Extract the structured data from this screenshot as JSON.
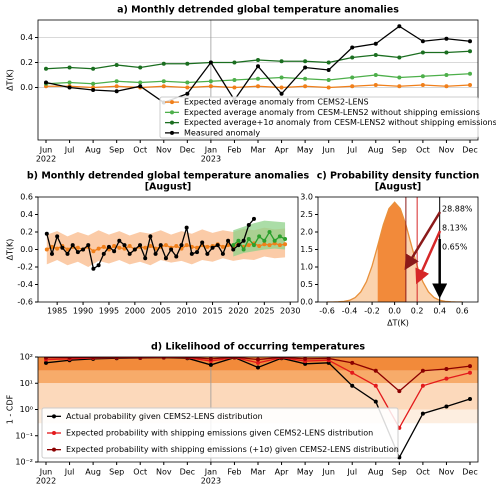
{
  "chart_data": [
    {
      "type": "line",
      "title": "a) Monthly detrended global temperature anomalies",
      "ylabel": "ΔT(K)",
      "categories": [
        "Jun",
        "Jul",
        "Aug",
        "Sep",
        "Oct",
        "Nov",
        "Dec",
        "Jan",
        "Feb",
        "Mar",
        "Apr",
        "May",
        "Jun",
        "Jul",
        "Aug",
        "Sep",
        "Oct",
        "Nov",
        "Dec"
      ],
      "x_years": [
        "2022",
        "2023"
      ],
      "ylim": [
        -0.42,
        0.54
      ],
      "yticks": [
        {
          "value": 0,
          "label": "0.0"
        },
        {
          "value": 0.2,
          "label": "0.2"
        },
        {
          "value": 0.4,
          "label": "0.4"
        }
      ],
      "grid": true,
      "series": [
        {
          "name": "Expected average anomaly from CEMS2-LENS",
          "color": "#f07f1a",
          "values": [
            0.01,
            0.01,
            0.0,
            0.01,
            0.0,
            0.01,
            0.0,
            0.01,
            0.0,
            0.01,
            0.0,
            0.01,
            0.0,
            0.01,
            0.02,
            0.01,
            0.02,
            0.01,
            0.02
          ]
        },
        {
          "name": "Expected average anomaly from CESM-LENS2 without shipping emissions",
          "color": "#4daf4a",
          "values": [
            0.03,
            0.04,
            0.03,
            0.05,
            0.04,
            0.05,
            0.04,
            0.05,
            0.06,
            0.07,
            0.08,
            0.07,
            0.06,
            0.08,
            0.1,
            0.08,
            0.09,
            0.1,
            0.11
          ]
        },
        {
          "name": "Expected average+1σ anomaly from CESM-LENS2 without shipping emissions",
          "color": "#1b6e20",
          "values": [
            0.15,
            0.16,
            0.15,
            0.18,
            0.16,
            0.19,
            0.19,
            0.2,
            0.2,
            0.22,
            0.21,
            0.21,
            0.2,
            0.24,
            0.26,
            0.24,
            0.28,
            0.28,
            0.29
          ]
        },
        {
          "name": "Measured anomaly",
          "color": "#000000",
          "values": [
            0.04,
            0.0,
            -0.02,
            -0.03,
            0.01,
            -0.12,
            -0.05,
            0.2,
            -0.1,
            0.17,
            -0.05,
            0.16,
            0.14,
            0.32,
            0.35,
            0.49,
            0.37,
            0.39,
            0.37
          ]
        }
      ]
    },
    {
      "type": "line",
      "title": "b) Monthly detrended global temperature anomalies",
      "subtitle": "[August]",
      "ylabel": "ΔT(K)",
      "xlim": [
        1981.3,
        2031.5
      ],
      "xticks": [
        1985,
        1990,
        1995,
        2000,
        2005,
        2010,
        2015,
        2020,
        2025,
        2030
      ],
      "ylim": [
        -0.6,
        0.6
      ],
      "yticks": [
        {
          "value": -0.6,
          "label": "-0.6"
        },
        {
          "value": -0.4,
          "label": "-0.4"
        },
        {
          "value": -0.2,
          "label": "-0.2"
        },
        {
          "value": 0,
          "label": "0.0"
        },
        {
          "value": 0.2,
          "label": "0.2"
        },
        {
          "value": 0.4,
          "label": "0.4"
        },
        {
          "value": 0.6,
          "label": "0.6"
        }
      ],
      "bands": [
        {
          "color": "#f9b98a",
          "x": [
            1983,
            1985,
            1987,
            1989,
            1991,
            1993,
            1995,
            1997,
            1999,
            2001,
            2003,
            2005,
            2007,
            2009,
            2011,
            2013,
            2015,
            2017,
            2019,
            2021,
            2023,
            2025,
            2027,
            2029
          ],
          "lower": [
            -0.17,
            -0.12,
            -0.18,
            -0.14,
            -0.2,
            -0.13,
            -0.16,
            -0.12,
            -0.17,
            -0.14,
            -0.18,
            -0.12,
            -0.15,
            -0.13,
            -0.17,
            -0.12,
            -0.14,
            -0.1,
            -0.13,
            -0.11,
            -0.12,
            -0.08,
            -0.1,
            -0.09
          ],
          "upper": [
            0.17,
            0.21,
            0.15,
            0.2,
            0.16,
            0.22,
            0.17,
            0.21,
            0.16,
            0.2,
            0.18,
            0.22,
            0.17,
            0.21,
            0.18,
            0.23,
            0.19,
            0.22,
            0.2,
            0.24,
            0.22,
            0.25,
            0.23,
            0.24
          ]
        },
        {
          "color": "#8fd18a",
          "x": [
            2019,
            2021,
            2023,
            2025,
            2027,
            2029
          ],
          "lower": [
            -0.08,
            -0.04,
            -0.02,
            0.0,
            0.01,
            0.0
          ],
          "upper": [
            0.22,
            0.26,
            0.3,
            0.33,
            0.32,
            0.31
          ]
        }
      ],
      "series": [
        {
          "color": "#f07f1a",
          "x": [
            1983,
            1984,
            1985,
            1986,
            1987,
            1988,
            1989,
            1990,
            1991,
            1992,
            1993,
            1994,
            1995,
            1996,
            1997,
            1998,
            1999,
            2000,
            2001,
            2002,
            2003,
            2004,
            2005,
            2006,
            2007,
            2008,
            2009,
            2010,
            2011,
            2012,
            2013,
            2014,
            2015,
            2016,
            2017,
            2018,
            2019,
            2020,
            2021,
            2022,
            2023,
            2024,
            2025,
            2026,
            2027,
            2028,
            2029
          ],
          "values": [
            0.0,
            0.03,
            0.01,
            0.04,
            0.0,
            0.03,
            0.02,
            0.0,
            0.03,
            -0.02,
            0.01,
            0.03,
            0.0,
            0.04,
            0.02,
            0.01,
            0.04,
            0.0,
            0.03,
            0.02,
            0.04,
            0.01,
            0.03,
            0.05,
            0.02,
            0.04,
            0.01,
            0.05,
            0.03,
            0.02,
            0.05,
            0.03,
            0.04,
            0.06,
            0.03,
            0.05,
            0.04,
            0.06,
            0.03,
            0.05,
            0.07,
            0.04,
            0.06,
            0.05,
            0.07,
            0.05,
            0.06
          ]
        },
        {
          "color": "#2ca02c",
          "x": [
            2019,
            2020,
            2021,
            2022,
            2023,
            2024,
            2025,
            2026,
            2027,
            2028,
            2029
          ],
          "values": [
            0.05,
            0.1,
            0.0,
            0.12,
            0.05,
            0.15,
            0.1,
            0.2,
            0.1,
            0.15,
            0.12
          ]
        },
        {
          "color": "#000000",
          "x": [
            1983,
            1984,
            1985,
            1986,
            1987,
            1988,
            1989,
            1990,
            1991,
            1992,
            1993,
            1994,
            1995,
            1996,
            1997,
            1998,
            1999,
            2000,
            2001,
            2002,
            2003,
            2004,
            2005,
            2006,
            2007,
            2008,
            2009,
            2010,
            2011,
            2012,
            2013,
            2014,
            2015,
            2016,
            2017,
            2018,
            2019,
            2020,
            2021,
            2022,
            2023
          ],
          "values": [
            0.18,
            -0.05,
            0.15,
            0.02,
            -0.05,
            0.05,
            -0.03,
            0.0,
            0.05,
            -0.22,
            -0.18,
            -0.05,
            0.03,
            -0.02,
            0.1,
            0.05,
            -0.05,
            0.0,
            0.05,
            -0.1,
            0.15,
            -0.05,
            0.05,
            -0.1,
            0.0,
            -0.08,
            0.05,
            0.25,
            -0.05,
            -0.03,
            0.08,
            -0.05,
            0.02,
            0.05,
            -0.05,
            0.1,
            0.0,
            0.05,
            0.1,
            0.28,
            0.35
          ]
        }
      ]
    },
    {
      "type": "area",
      "title": "c) Probability density function",
      "subtitle": "[August]",
      "xlabel": "ΔT(K)",
      "xlim": [
        -0.68,
        0.74
      ],
      "xticks": [
        {
          "value": -0.6,
          "label": "-0.6"
        },
        {
          "value": -0.4,
          "label": "-0.4"
        },
        {
          "value": -0.2,
          "label": "-0.2"
        },
        {
          "value": 0,
          "label": "0.0"
        },
        {
          "value": 0.2,
          "label": "0.2"
        },
        {
          "value": 0.4,
          "label": "0.4"
        },
        {
          "value": 0.6,
          "label": "0.6"
        }
      ],
      "ylim": [
        0,
        3.0
      ],
      "yticks": [
        {
          "value": 0,
          "label": "0.0"
        },
        {
          "value": 0.5,
          "label": "0.5"
        },
        {
          "value": 1,
          "label": "1.0"
        },
        {
          "value": 1.5,
          "label": "1.5"
        },
        {
          "value": 2,
          "label": "2.0"
        },
        {
          "value": 2.5,
          "label": "2.5"
        },
        {
          "value": 3,
          "label": "3.0"
        }
      ],
      "color": "#e8913c",
      "fill": "#fbd3ae",
      "highlight": {
        "from": -0.15,
        "to": 0.1,
        "color": "#f28a3a"
      },
      "x": [
        -0.6,
        -0.55,
        -0.5,
        -0.45,
        -0.4,
        -0.35,
        -0.3,
        -0.25,
        -0.2,
        -0.15,
        -0.1,
        -0.05,
        0,
        0.05,
        0.1,
        0.15,
        0.2,
        0.25,
        0.3,
        0.35,
        0.4,
        0.45,
        0.5,
        0.55,
        0.6
      ],
      "values": [
        0,
        0,
        0.005,
        0.016,
        0.048,
        0.125,
        0.29,
        0.58,
        1.03,
        1.61,
        2.21,
        2.67,
        2.85,
        2.67,
        2.21,
        1.61,
        1.03,
        0.58,
        0.29,
        0.125,
        0.048,
        0.016,
        0.005,
        0,
        0
      ],
      "thresholds": [
        {
          "x": 0.1,
          "text": "28.88%",
          "color": "#8b1a1a"
        },
        {
          "x": 0.2,
          "text": "8.13%",
          "color": "#d62728"
        },
        {
          "x": 0.4,
          "text": "0.65%",
          "color": "#000000"
        }
      ]
    },
    {
      "type": "line",
      "title": "d) Likelihood of occurring temperatures",
      "ylabel": "1 - CDF",
      "log": true,
      "categories": [
        "Jun",
        "Jul",
        "Aug",
        "Sep",
        "Oct",
        "Nov",
        "Dec",
        "Jan",
        "Feb",
        "Mar",
        "Apr",
        "May",
        "Jun",
        "Jul",
        "Aug",
        "Sep",
        "Oct",
        "Nov",
        "Dec"
      ],
      "x_years": [
        "2022",
        "2023"
      ],
      "ylim": [
        0.01,
        100
      ],
      "yticks": [
        {
          "value": 0.01,
          "label": "10⁻²"
        },
        {
          "value": 0.1,
          "label": "10⁻¹"
        },
        {
          "value": 1,
          "label": "10⁰"
        },
        {
          "value": 10,
          "label": "10¹"
        },
        {
          "value": 100,
          "label": "10²"
        }
      ],
      "shading": [
        {
          "from": 30,
          "to": 100,
          "color": "#f28a3a"
        },
        {
          "from": 10,
          "to": 30,
          "color": "#f7ab6a"
        },
        {
          "from": 1,
          "to": 10,
          "color": "#fcd9bb"
        },
        {
          "from": 0.3,
          "to": 1,
          "color": "#fdeee0"
        }
      ],
      "series": [
        {
          "name": "Actual probability given CEMS2-LENS distribution",
          "color": "#000000",
          "values": [
            60,
            75,
            85,
            90,
            92,
            95,
            90,
            50,
            95,
            40,
            90,
            55,
            60,
            8,
            2,
            0.015,
            0.7,
            1.3,
            2.5
          ]
        },
        {
          "name": "Expected probability with shipping emissions given CEMS2-LENS distribution",
          "color": "#e31a1c",
          "values": [
            80,
            85,
            92,
            95,
            95,
            97,
            95,
            70,
            97,
            60,
            95,
            70,
            75,
            25,
            8,
            0.2,
            8,
            15,
            25
          ]
        },
        {
          "name": "Expected probability with shipping emissions (+1σ) given CEMS2-LENS distribution",
          "color": "#8b0000",
          "values": [
            95,
            95,
            97,
            98,
            98,
            99,
            98,
            85,
            99,
            80,
            98,
            85,
            88,
            60,
            30,
            5,
            30,
            35,
            45
          ]
        }
      ]
    }
  ]
}
